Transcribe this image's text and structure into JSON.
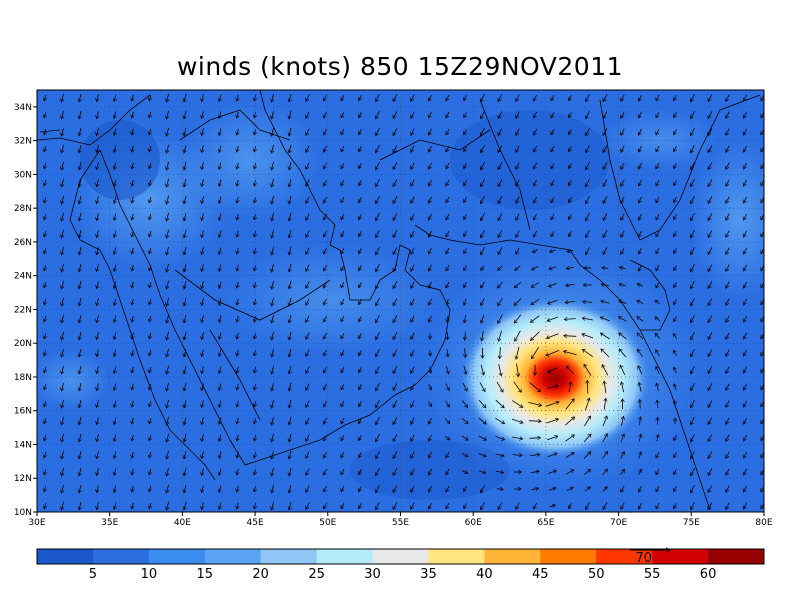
{
  "title": "winds (knots) 850  15Z29NOV2011",
  "lat_labels": [
    "10N",
    "12N",
    "14N",
    "16N",
    "18N",
    "20N",
    "22N",
    "24N",
    "26N",
    "28N",
    "30N",
    "32N",
    "34N"
  ],
  "lon_labels": [
    "30E",
    "35E",
    "40E",
    "45E",
    "50E",
    "55E",
    "60E",
    "65E",
    "70E",
    "75E",
    "80E"
  ],
  "extent": {
    "lon": [
      30,
      80
    ],
    "lat": [
      10,
      35
    ]
  },
  "grid": "dotted",
  "colorbar": {
    "colors": [
      "#1a58cc",
      "#2a6ee2",
      "#3a8cf0",
      "#5aa2f2",
      "#8ec6f6",
      "#b4ecfa",
      "#e8e8e8",
      "#ffe680",
      "#ffb437",
      "#ff7a00",
      "#ff3600",
      "#d20000",
      "#960000"
    ],
    "labels": [
      "5",
      "10",
      "15",
      "20",
      "25",
      "30",
      "35",
      "40",
      "45",
      "50",
      "55",
      "60"
    ],
    "reference_vector_label": "70"
  },
  "cyclone_center": {
    "lon": 65.5,
    "lat": 18.0,
    "max_knots": 60
  }
}
